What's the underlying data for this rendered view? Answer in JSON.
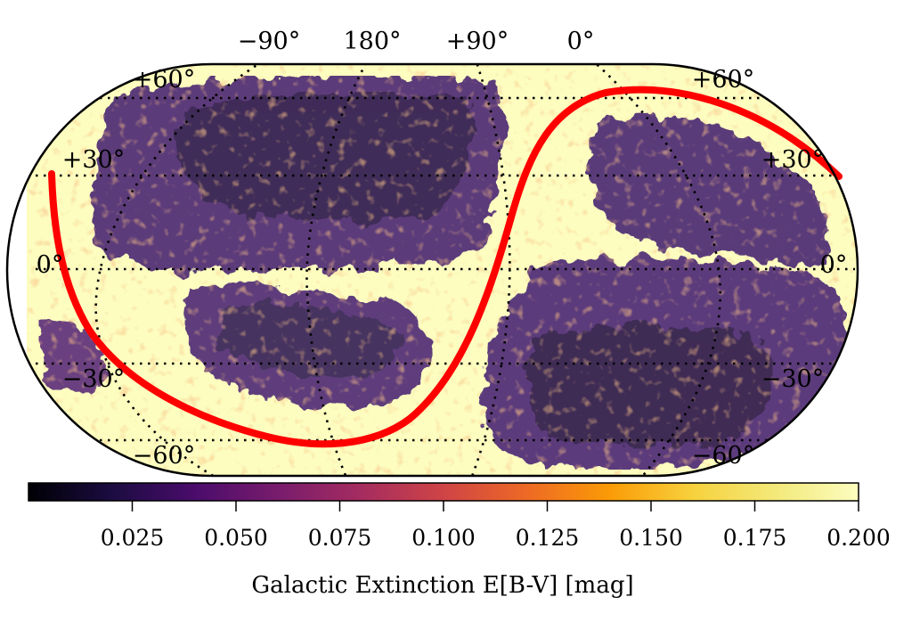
{
  "map": {
    "projection": "eckert-like-oval",
    "longitude_labels": [
      "−90°",
      "180°",
      "+90°",
      "0°"
    ],
    "latitude_labels_left": [
      "+60°",
      "+30°",
      "0°",
      "−30°",
      "−60°"
    ],
    "latitude_labels_right": [
      "+60°",
      "+30°",
      "0°",
      "−30°",
      "−60°"
    ],
    "graticule_style": "dotted",
    "overlay_curve_color": "#ff0000",
    "background_high_color": "#fcfdbf"
  },
  "colorbar": {
    "colormap": "inferno",
    "vmin": 0.0,
    "vmax": 0.2,
    "tick_labels": [
      "0.025",
      "0.050",
      "0.075",
      "0.100",
      "0.125",
      "0.150",
      "0.175",
      "0.200"
    ],
    "tick_values": [
      0.025,
      0.05,
      0.075,
      0.1,
      0.125,
      0.15,
      0.175,
      0.2
    ],
    "title": "Galactic Extinction E[B-V] [mag]"
  }
}
